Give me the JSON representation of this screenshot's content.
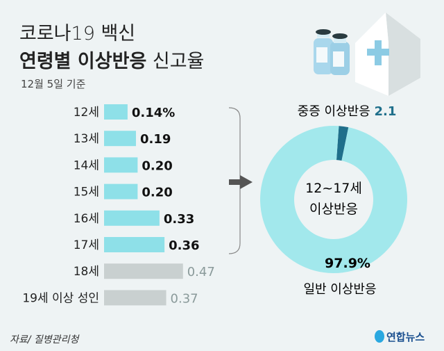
{
  "title_line1": "코로나19 백신",
  "title_line2_bold": "연령별 이상반응",
  "title_line2_rest": "신고율",
  "subtitle": "12월 5일 기준",
  "source": "자료/ 질병관리청",
  "logo": "연합뉴스",
  "colors": {
    "bar_youth": "#8ee0e8",
    "bar_adult": "#c9d0d0",
    "donut_general": "#a2e8ec",
    "donut_severe": "#1f6f8b",
    "value_adult": "#8a9a9a"
  },
  "chart_data": [
    {
      "type": "bar",
      "orientation": "horizontal",
      "categories": [
        "12세",
        "13세",
        "14세",
        "15세",
        "16세",
        "17세",
        "18세",
        "19세 이상 성인"
      ],
      "values": [
        0.14,
        0.19,
        0.2,
        0.2,
        0.33,
        0.36,
        0.47,
        0.37
      ],
      "labels": [
        "0.14%",
        "0.19",
        "0.20",
        "0.20",
        "0.33",
        "0.36",
        "0.47",
        "0.37"
      ],
      "highlight_group": [
        true,
        true,
        true,
        true,
        true,
        true,
        false,
        false
      ],
      "unit": "%"
    },
    {
      "type": "pie",
      "title": "12~17세 이상반응",
      "slices": [
        {
          "label": "중증 이상반응",
          "value": 2.1,
          "display": "2.1"
        },
        {
          "label": "일반 이상반응",
          "value": 97.9,
          "display": "97.9%"
        }
      ]
    }
  ]
}
